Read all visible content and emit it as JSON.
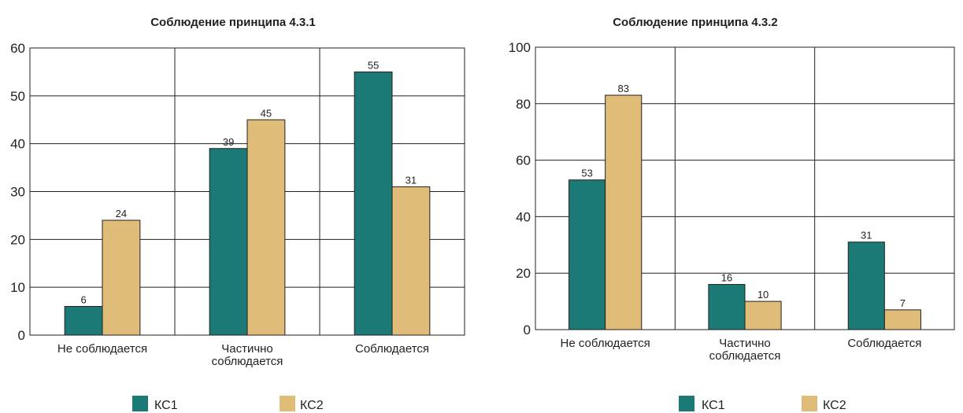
{
  "colors": {
    "kc1": "#1b7a75",
    "kc2": "#dfbd78",
    "grid": "#231f20"
  },
  "chart_data": [
    {
      "type": "bar",
      "title": "Соблюдение принципа 4.3.1",
      "categories": [
        "Не соблюдается",
        "Частично соблюдается",
        "Соблюдается"
      ],
      "category_lines": [
        [
          "Не соблюдается"
        ],
        [
          "Частично",
          "соблюдается"
        ],
        [
          "Соблюдается"
        ]
      ],
      "series": [
        {
          "name": "КС1",
          "values": [
            6,
            39,
            55
          ]
        },
        {
          "name": "КС2",
          "values": [
            24,
            45,
            31
          ]
        }
      ],
      "ylim": [
        0,
        60
      ],
      "yticks": [
        0,
        10,
        20,
        30,
        40,
        50,
        60
      ],
      "grid": true,
      "legend": "bottom"
    },
    {
      "type": "bar",
      "title": "Соблюдение принципа 4.3.2",
      "categories": [
        "Не соблюдается",
        "Частично соблюдается",
        "Соблюдается"
      ],
      "category_lines": [
        [
          "Не соблюдается"
        ],
        [
          "Частично",
          "соблюдается"
        ],
        [
          "Соблюдается"
        ]
      ],
      "series": [
        {
          "name": "КС1",
          "values": [
            53,
            16,
            31
          ]
        },
        {
          "name": "КС2",
          "values": [
            83,
            10,
            7
          ]
        }
      ],
      "ylim": [
        0,
        100
      ],
      "yticks": [
        0,
        20,
        40,
        60,
        80,
        100
      ],
      "grid": true,
      "legend": "bottom"
    }
  ]
}
